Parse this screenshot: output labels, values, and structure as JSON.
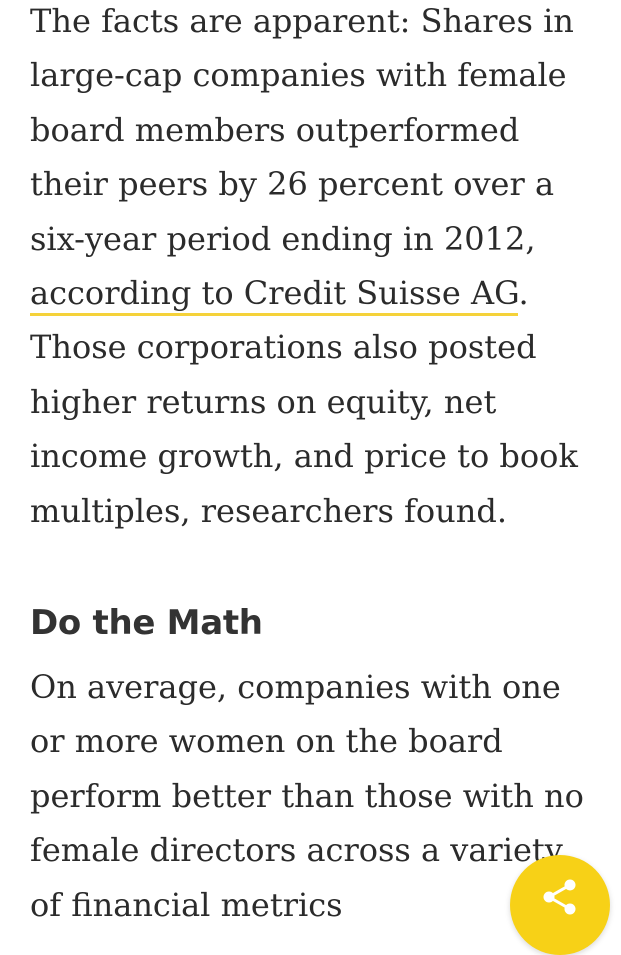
{
  "article": {
    "paragraph_1": {
      "line_1": "The facts are apparent: Shares in",
      "line_2": "large-cap companies with female",
      "line_3": "board members outperformed",
      "line_4": "their peers by 26 percent over a",
      "line_5": "six-year period ending in 2012,",
      "link_text": "according to Credit Suisse AG",
      "line_6_after": ".",
      "line_7": "Those corporations also posted",
      "line_8": "higher returns on equity, net",
      "line_9": "income growth, and price to book",
      "line_10": "multiples, researchers found."
    },
    "section_heading": "Do the Math",
    "paragraph_2": {
      "line_1": "On average, companies with one",
      "line_2": "or more women on the board",
      "line_3": "perform better than those with no",
      "line_4": "female directors across a variety",
      "line_5": "of financial metrics"
    }
  },
  "share_button": {
    "icon": "share-icon",
    "color": "#f7d117"
  },
  "colors": {
    "text": "#2b2b2b",
    "link_underline": "#f5d23a",
    "background": "#ffffff"
  }
}
